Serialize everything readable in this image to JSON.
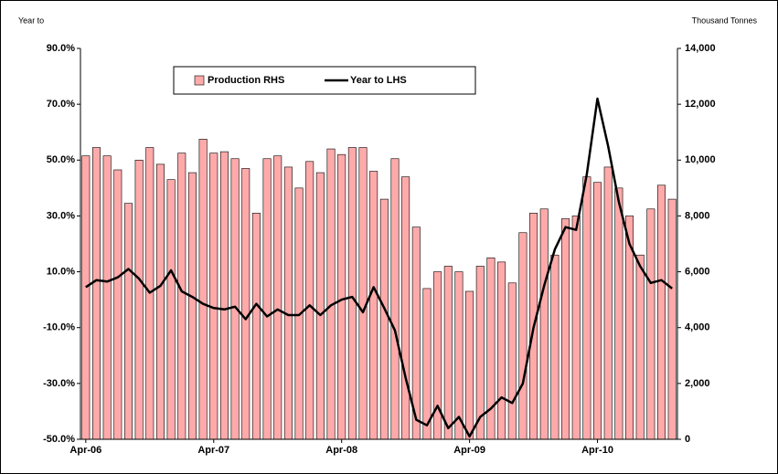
{
  "chart_data": {
    "type": "bar-line",
    "y_label": "Year to",
    "y2_label": "Thousand Tonnes",
    "categories": [
      "Apr-06",
      null,
      null,
      null,
      null,
      null,
      null,
      null,
      null,
      null,
      null,
      null,
      "Apr-07",
      null,
      null,
      null,
      null,
      null,
      null,
      null,
      null,
      null,
      null,
      null,
      "Apr-08",
      null,
      null,
      null,
      null,
      null,
      null,
      null,
      null,
      null,
      null,
      null,
      "Apr-09",
      null,
      null,
      null,
      null,
      null,
      null,
      null,
      null,
      null,
      null,
      null,
      "Apr-10",
      null,
      null,
      null,
      null,
      null,
      null,
      null
    ],
    "series": [
      {
        "name": "Production RHS",
        "type": "bar",
        "axis": "y2",
        "color": "#ffaaaa",
        "values": [
          10150,
          10450,
          10150,
          9650,
          8450,
          10000,
          10450,
          9850,
          9300,
          10250,
          9550,
          10750,
          10250,
          10300,
          10050,
          9700,
          8100,
          10050,
          10150,
          9750,
          9000,
          9950,
          9550,
          10400,
          10200,
          10450,
          10450,
          9600,
          8600,
          10050,
          9400,
          7600,
          5400,
          6000,
          6200,
          6000,
          5300,
          6200,
          6500,
          6350,
          5600,
          7400,
          8100,
          8250,
          6600,
          7900,
          8000,
          9400,
          9200,
          9750,
          9000,
          8000,
          6600,
          8250,
          9100,
          8600
        ]
      },
      {
        "name": "Year to LHS",
        "type": "line",
        "axis": "y",
        "color": "#000000",
        "values": [
          4.5,
          7,
          6.5,
          8,
          11,
          7.5,
          2.5,
          5,
          10.5,
          3,
          1,
          -1.5,
          -3,
          -3.5,
          -2.5,
          -7,
          -1.5,
          -6,
          -3.5,
          -5.5,
          -5.5,
          -2,
          -5.5,
          -2,
          0,
          1,
          -4.5,
          4.5,
          -3,
          -11,
          -28,
          -43,
          -45,
          -38,
          -46,
          -42,
          -49,
          -42,
          -39,
          -35,
          -37,
          -30,
          -10,
          5,
          18,
          26,
          25,
          45,
          72,
          55,
          35,
          20,
          12,
          6,
          7,
          4
        ]
      }
    ],
    "ylim": [
      -50,
      90
    ],
    "yticks": [
      {
        "value": -50,
        "label": "-50.0%"
      },
      {
        "value": -30,
        "label": "-30.0%"
      },
      {
        "value": -10,
        "label": "-10.0%"
      },
      {
        "value": 10,
        "label": "10.0%"
      },
      {
        "value": 30,
        "label": "30.0%"
      },
      {
        "value": 50,
        "label": "50.0%"
      },
      {
        "value": 70,
        "label": "70.0%"
      },
      {
        "value": 90,
        "label": "90.0%"
      }
    ],
    "y2lim": [
      0,
      14000
    ],
    "y2ticks": [
      0,
      {
        "value": 2000,
        "label": "2,000"
      },
      {
        "value": 4000,
        "label": "4,000"
      },
      {
        "value": 6000,
        "label": "6,000"
      },
      {
        "value": 8000,
        "label": "8,000"
      },
      {
        "value": 10000,
        "label": "10,000"
      },
      {
        "value": 12000,
        "label": "12,000"
      },
      {
        "value": 14000,
        "label": "14,000"
      }
    ],
    "legend": "top-left"
  }
}
